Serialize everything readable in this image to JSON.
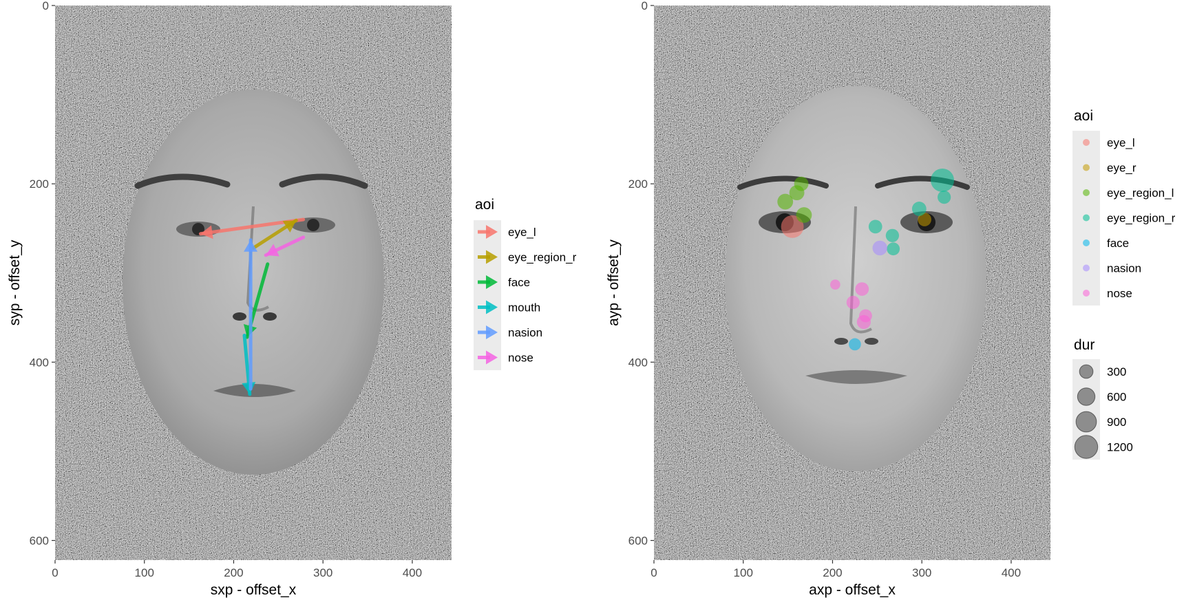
{
  "chart_data": [
    {
      "type": "scatter",
      "title": "",
      "xlabel": "sxp - offset_x",
      "ylabel": "syp - offset_y",
      "xlim": [
        0,
        444
      ],
      "ylim": [
        0,
        622
      ],
      "y_reversed": true,
      "x_ticks": [
        "0",
        "100",
        "200",
        "300",
        "400"
      ],
      "y_ticks": [
        "0",
        "200",
        "400",
        "600"
      ],
      "x_tick_values": [
        0,
        100,
        200,
        300,
        400
      ],
      "y_tick_values": [
        0,
        200,
        400,
        600
      ],
      "grid": false,
      "background": "scrambled noise with male face photo in oval",
      "legend": {
        "title": "aoi",
        "position": "right",
        "entries": [
          "eye_l",
          "eye_region_r",
          "face",
          "mouth",
          "nasion",
          "nose"
        ]
      },
      "series": [
        {
          "name": "eye_l",
          "color": "#F8766D",
          "arrows": [
            [
              278,
              240,
              163,
              256
            ]
          ]
        },
        {
          "name": "eye_region_r",
          "color": "#B79F00",
          "arrows": [
            [
              222,
              272,
              270,
              241
            ]
          ]
        },
        {
          "name": "face",
          "color": "#00BA38",
          "arrows": [
            [
              238,
              290,
              215,
              372
            ]
          ]
        },
        {
          "name": "mouth",
          "color": "#00BFC4",
          "arrows": [
            [
              212,
              370,
              218,
              436
            ]
          ]
        },
        {
          "name": "nasion",
          "color": "#619CFF",
          "arrows": [
            [
              219,
              430,
              219,
              263
            ]
          ]
        },
        {
          "name": "nose",
          "color": "#F564E3",
          "arrows": [
            [
              278,
              260,
              236,
              280
            ]
          ]
        }
      ]
    },
    {
      "type": "scatter",
      "title": "",
      "xlabel": "axp - offset_x",
      "ylabel": "ayp - offset_y",
      "xlim": [
        0,
        444
      ],
      "ylim": [
        0,
        622
      ],
      "y_reversed": true,
      "x_ticks": [
        "0",
        "100",
        "200",
        "300",
        "400"
      ],
      "y_ticks": [
        "0",
        "200",
        "400",
        "600"
      ],
      "x_tick_values": [
        0,
        100,
        200,
        300,
        400
      ],
      "y_tick_values": [
        0,
        200,
        400,
        600
      ],
      "grid": false,
      "background": "scrambled noise with female face photo in oval",
      "legend": {
        "title": "aoi",
        "position": "right",
        "entries": [
          "eye_l",
          "eye_r",
          "eye_region_l",
          "eye_region_r",
          "face",
          "nasion",
          "nose"
        ],
        "size_title": "dur",
        "size_entries": [
          "300",
          "600",
          "900",
          "1200"
        ],
        "size_values": [
          300,
          600,
          900,
          1200
        ]
      },
      "series": [
        {
          "name": "eye_l",
          "color": "#F8766D",
          "points": [
            {
              "x": 155,
              "y": 248,
              "dur": 1150
            }
          ]
        },
        {
          "name": "eye_r",
          "color": "#C49A00",
          "points": [
            {
              "x": 303,
              "y": 240,
              "dur": 300
            }
          ]
        },
        {
          "name": "eye_region_l",
          "color": "#53B400",
          "points": [
            {
              "x": 165,
              "y": 200,
              "dur": 350
            },
            {
              "x": 160,
              "y": 210,
              "dur": 400
            },
            {
              "x": 147,
              "y": 220,
              "dur": 450
            },
            {
              "x": 168,
              "y": 235,
              "dur": 450
            }
          ]
        },
        {
          "name": "eye_region_r",
          "color": "#00C094",
          "points": [
            {
              "x": 323,
              "y": 196,
              "dur": 1250
            },
            {
              "x": 325,
              "y": 215,
              "dur": 280
            },
            {
              "x": 297,
              "y": 228,
              "dur": 350
            },
            {
              "x": 248,
              "y": 248,
              "dur": 300
            },
            {
              "x": 267,
              "y": 258,
              "dur": 280
            },
            {
              "x": 268,
              "y": 273,
              "dur": 260
            }
          ]
        },
        {
          "name": "face",
          "color": "#00B6EB",
          "points": [
            {
              "x": 225,
              "y": 380,
              "dur": 220
            }
          ]
        },
        {
          "name": "nasion",
          "color": "#A58AFF",
          "points": [
            {
              "x": 253,
              "y": 272,
              "dur": 380
            }
          ]
        },
        {
          "name": "nose",
          "color": "#FB61D7",
          "points": [
            {
              "x": 203,
              "y": 313,
              "dur": 120
            },
            {
              "x": 233,
              "y": 318,
              "dur": 300
            },
            {
              "x": 223,
              "y": 333,
              "dur": 280
            },
            {
              "x": 237,
              "y": 348,
              "dur": 260
            },
            {
              "x": 235,
              "y": 355,
              "dur": 320
            }
          ]
        }
      ]
    }
  ]
}
